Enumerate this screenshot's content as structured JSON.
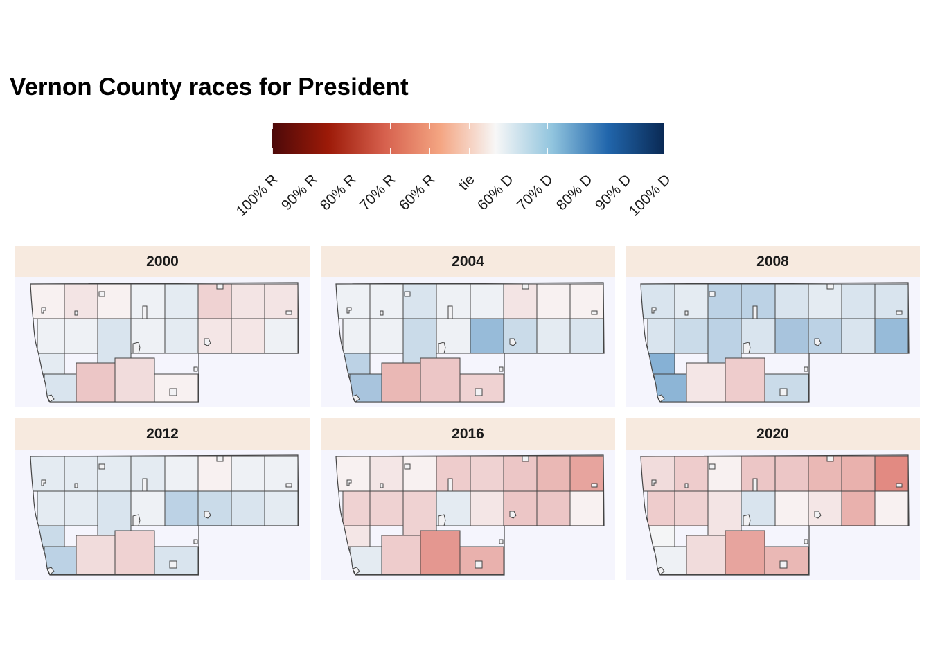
{
  "title": "Vernon County races for President",
  "legend": {
    "labels": [
      "100% R",
      "90% R",
      "80% R",
      "70% R",
      "60% R",
      "tie",
      "60% D",
      "70% D",
      "80% D",
      "90% D",
      "100% D"
    ],
    "colors": [
      "#4d0909",
      "#9c1a08",
      "#d6604d",
      "#f4a582",
      "#f7f7f7",
      "#92c5de",
      "#2166ac",
      "#0a2a55"
    ]
  },
  "panels": [
    {
      "year": "2000",
      "shades": [
        "r1",
        "r3",
        "r1",
        "d1",
        "d2",
        "r5",
        "r3",
        "r3",
        "d1",
        "d1",
        "d3",
        "d1",
        "d2",
        "r2",
        "r2",
        "d1",
        "d3",
        "r7",
        "r4",
        "r1",
        "d2"
      ]
    },
    {
      "year": "2004",
      "shades": [
        "d1",
        "d1",
        "d3",
        "d1",
        "d1",
        "r3",
        "r1",
        "r1",
        "d1",
        "d1",
        "d4",
        "d1",
        "d7",
        "d4",
        "d2",
        "d3",
        "d6",
        "r8",
        "r7",
        "r5",
        "d5"
      ]
    },
    {
      "year": "2008",
      "shades": [
        "d3",
        "d2",
        "d5",
        "d5",
        "d3",
        "d2",
        "d3",
        "d3",
        "d3",
        "d4",
        "d5",
        "d3",
        "d6",
        "d5",
        "d3",
        "d7",
        "d8",
        "r2",
        "r6",
        "d4",
        "d9"
      ]
    },
    {
      "year": "2012",
      "shades": [
        "d2",
        "d2",
        "d2",
        "d2",
        "d1",
        "r1",
        "d1",
        "d1",
        "d2",
        "d2",
        "d3",
        "d1",
        "d5",
        "d4",
        "d3",
        "d2",
        "d5",
        "r4",
        "r5",
        "d3",
        "d4"
      ]
    },
    {
      "year": "2016",
      "shades": [
        "r1",
        "r2",
        "r1",
        "r6",
        "r5",
        "r7",
        "r8",
        "rA",
        "r5",
        "r5",
        "r5",
        "d2",
        "r2",
        "r7",
        "r7",
        "r1",
        "d2",
        "r6",
        "rB",
        "r9",
        "r2"
      ]
    },
    {
      "year": "2020",
      "shades": [
        "r4",
        "r6",
        "r1",
        "r7",
        "r7",
        "r8",
        "r9",
        "rC",
        "r6",
        "r5",
        "r3",
        "d3",
        "r1",
        "r2",
        "r9",
        "r1",
        "d1",
        "r4",
        "rA",
        "r8",
        "d0"
      ]
    }
  ]
}
